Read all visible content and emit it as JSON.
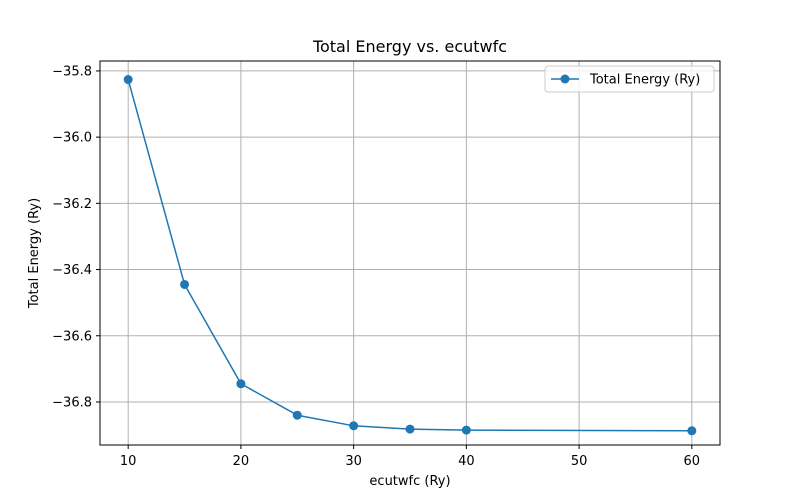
{
  "chart_data": {
    "type": "line",
    "title": "Total Energy vs. ecutwfc",
    "xlabel": "ecutwfc (Ry)",
    "ylabel": "Total Energy (Ry)",
    "xlim": [
      7.5,
      62.5
    ],
    "ylim": [
      -36.93,
      -35.77
    ],
    "x_ticks": [
      10,
      20,
      30,
      40,
      50,
      60
    ],
    "x_tick_labels": [
      "10",
      "20",
      "30",
      "40",
      "50",
      "60"
    ],
    "y_ticks": [
      -35.8,
      -36.0,
      -36.2,
      -36.4,
      -36.6,
      -36.8
    ],
    "y_tick_labels": [
      "−35.8",
      "−36.0",
      "−36.2",
      "−36.4",
      "−36.6",
      "−36.8"
    ],
    "grid": true,
    "legend_position": "top-right",
    "series": [
      {
        "name": "Total Energy (Ry)",
        "color": "#1f77b4",
        "marker": "circle",
        "x": [
          10,
          15,
          20,
          25,
          30,
          35,
          40,
          60
        ],
        "y": [
          -35.826,
          -36.445,
          -36.745,
          -36.84,
          -36.872,
          -36.882,
          -36.885,
          -36.887
        ]
      }
    ]
  }
}
